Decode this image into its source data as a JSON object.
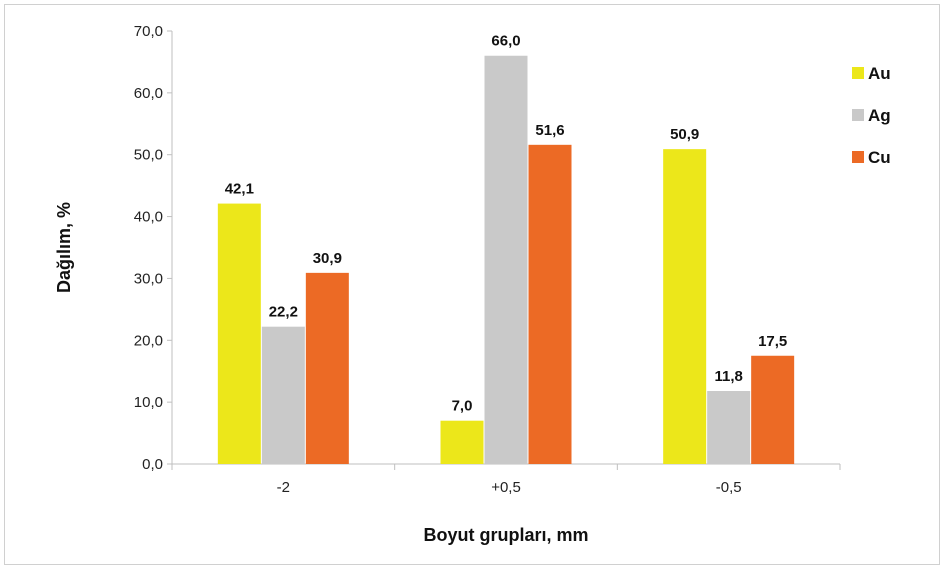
{
  "chart_data": {
    "type": "bar",
    "title": "",
    "xlabel": "Boyut grupları, mm",
    "ylabel": "Dağılım, %",
    "categories": [
      "-2",
      "+0,5",
      "-0,5"
    ],
    "ylim": [
      0,
      70
    ],
    "yticks": [
      "0,0",
      "10,0",
      "20,0",
      "30,0",
      "40,0",
      "50,0",
      "60,0",
      "70,0"
    ],
    "grid": false,
    "legend_position": "right",
    "series": [
      {
        "name": "Au",
        "color": "#ece71a",
        "values": [
          42.1,
          7.0,
          50.9
        ],
        "labels": [
          "42,1",
          "7,0",
          "50,9"
        ]
      },
      {
        "name": "Ag",
        "color": "#c9c9c9",
        "values": [
          22.2,
          66.0,
          11.8
        ],
        "labels": [
          "22,2",
          "66,0",
          "11,8"
        ]
      },
      {
        "name": "Cu",
        "color": "#ec6a25",
        "values": [
          30.9,
          51.6,
          17.5
        ],
        "labels": [
          "30,9",
          "51,6",
          "17,5"
        ]
      }
    ]
  }
}
